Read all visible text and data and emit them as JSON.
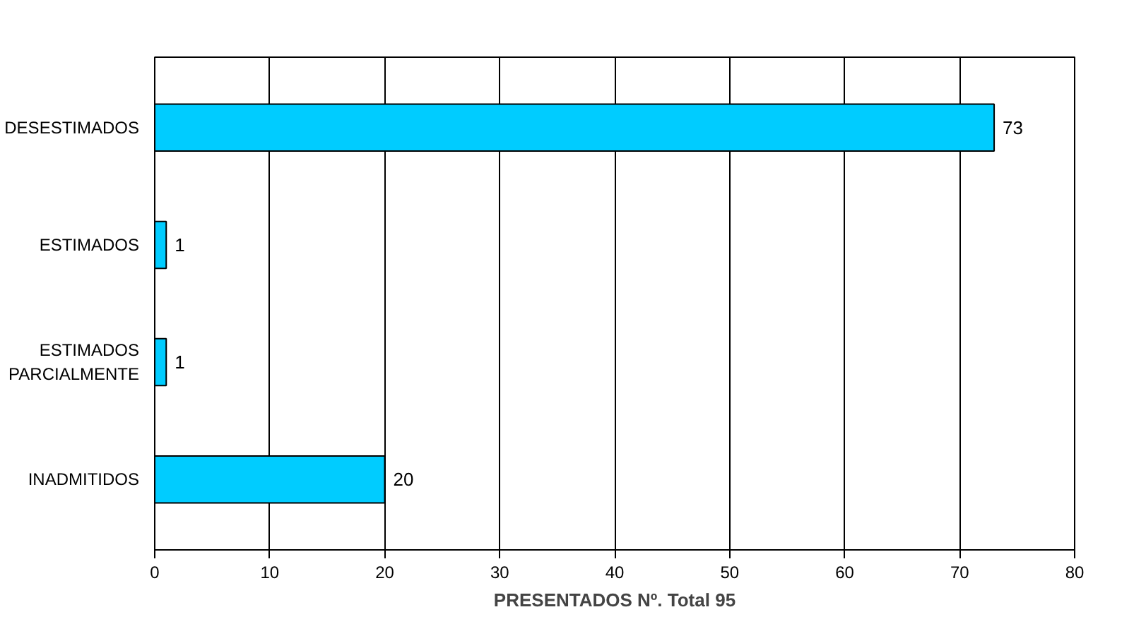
{
  "chart_data": {
    "type": "bar",
    "orientation": "horizontal",
    "categories": [
      "DESESTIMADOS",
      "ESTIMADOS",
      "ESTIMADOS\nPARCIALMENTE",
      "INADMITIDOS"
    ],
    "values": [
      73,
      1,
      1,
      20
    ],
    "color": "#00ccff",
    "xlim": [
      0,
      80
    ],
    "xticks": [
      0,
      10,
      20,
      30,
      40,
      50,
      60,
      70,
      80
    ],
    "xlabel": "PRESENTADOS Nº. Total 95",
    "grid": "x",
    "data_labels": true
  }
}
